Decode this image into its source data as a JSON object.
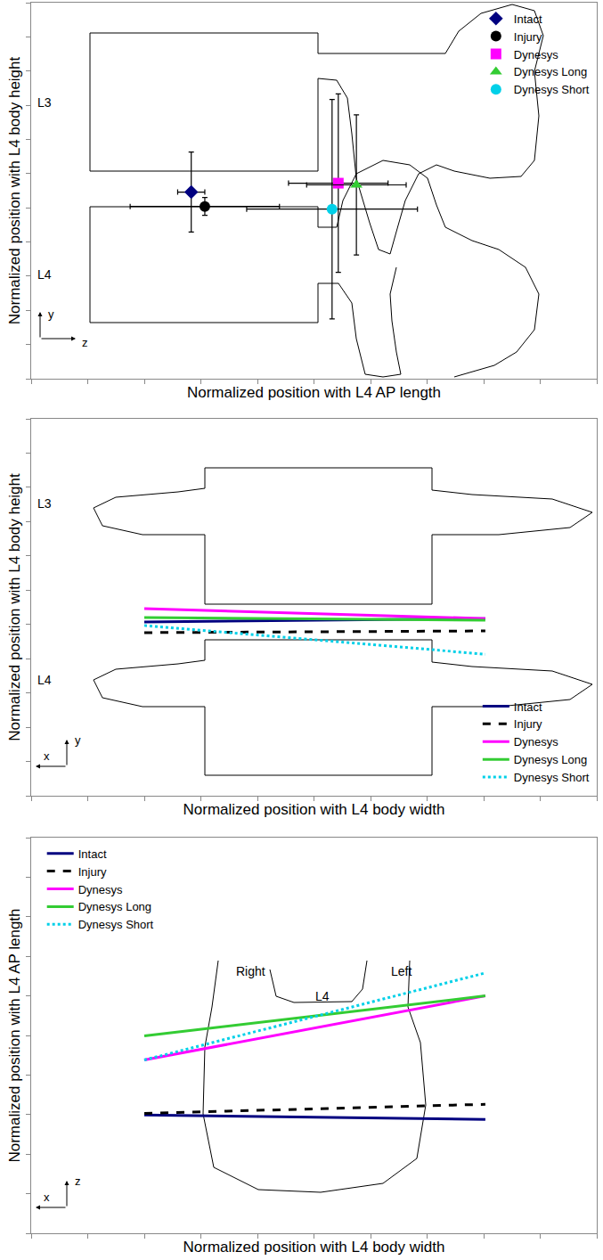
{
  "chart_data": [
    {
      "type": "scatter",
      "x_label": "Normalized position with L4 AP length",
      "y_label": "Normalized position with L4 body height",
      "xlim": [
        0,
        10
      ],
      "ylim": [
        0,
        11
      ],
      "xticks": [
        0,
        1,
        2,
        3,
        4,
        5,
        6,
        7,
        8,
        9,
        10
      ],
      "yticks": [
        0,
        1,
        2,
        3,
        4,
        5,
        6,
        7,
        8,
        9,
        10,
        11
      ],
      "tick_labels": false,
      "legend": "upper right",
      "annotations": [
        "L3",
        "L4"
      ],
      "axis_glyphs": [
        "y",
        "z"
      ],
      "series": [
        {
          "name": "Intact",
          "color": "#000080",
          "marker": "diamond",
          "x": [
            2.83
          ],
          "values": [
            5.46
          ],
          "x_error": [
            0.24
          ],
          "y_error": [
            1.17
          ]
        },
        {
          "name": "Injury",
          "color": "#000000",
          "marker": "circle",
          "x": [
            3.07
          ],
          "values": [
            5.04
          ],
          "x_error": [
            1.32
          ],
          "y_error": [
            0.26
          ]
        },
        {
          "name": "Dynesys",
          "color": "#ff00ff",
          "marker": "square",
          "x": [
            5.43
          ],
          "values": [
            5.72
          ],
          "x_error": [
            0.88
          ],
          "y_error": [
            2.61
          ]
        },
        {
          "name": "Dynesys Long",
          "color": "#33cc33",
          "marker": "triangle-up",
          "x": [
            5.75
          ],
          "values": [
            5.67
          ],
          "x_error": [
            0.88
          ],
          "y_error": [
            2.05
          ]
        },
        {
          "name": "Dynesys Short",
          "color": "#00d0e8",
          "marker": "circle",
          "x": [
            5.32
          ],
          "values": [
            4.96
          ],
          "x_error": [
            1.51
          ],
          "y_error": [
            3.21
          ]
        }
      ]
    },
    {
      "type": "line",
      "x_label": "Normalized position with L4 body width",
      "y_label": "Normalized position with L4 body height",
      "xlim": [
        0,
        10
      ],
      "ylim": [
        0,
        11
      ],
      "xticks": [
        0,
        1,
        2,
        3,
        4,
        5,
        6,
        7,
        8,
        9,
        10
      ],
      "yticks": [
        0,
        1,
        2,
        3,
        4,
        5,
        6,
        7,
        8,
        9,
        10,
        11
      ],
      "tick_labels": false,
      "legend": "lower right",
      "annotations": [
        "L3",
        "L4"
      ],
      "axis_glyphs": [
        "y",
        "x"
      ],
      "series": [
        {
          "name": "Intact",
          "color": "#000080",
          "line_style": "solid",
          "x": [
            2.0,
            8.03
          ],
          "values": [
            5.07,
            5.17
          ]
        },
        {
          "name": "Injury",
          "color": "#000000",
          "line_style": "dash",
          "x": [
            2.0,
            8.03
          ],
          "values": [
            4.76,
            4.81
          ]
        },
        {
          "name": "Dynesys",
          "color": "#ff00ff",
          "line_style": "solid",
          "x": [
            2.0,
            8.03
          ],
          "values": [
            5.46,
            5.17
          ]
        },
        {
          "name": "Dynesys Long",
          "color": "#33cc33",
          "line_style": "solid",
          "x": [
            2.0,
            8.03
          ],
          "values": [
            5.2,
            5.12
          ]
        },
        {
          "name": "Dynesys Short",
          "color": "#00d0e8",
          "line_style": "dot",
          "x": [
            2.0,
            8.03
          ],
          "values": [
            4.97,
            4.13
          ]
        }
      ]
    },
    {
      "type": "line",
      "x_label": "Normalized position with L4 body width",
      "y_label": "Normalized position with L4 AP length",
      "xlim": [
        0,
        10
      ],
      "ylim": [
        0,
        10
      ],
      "xticks": [
        0,
        1,
        2,
        3,
        4,
        5,
        6,
        7,
        8,
        9,
        10
      ],
      "yticks": [
        0,
        1,
        2,
        3,
        4,
        5,
        6,
        7,
        8,
        9,
        10
      ],
      "tick_labels": false,
      "legend": "upper left",
      "annotations": [
        "Right",
        "L4",
        "Left"
      ],
      "axis_glyphs": [
        "z",
        "x"
      ],
      "series": [
        {
          "name": "Intact",
          "color": "#000080",
          "line_style": "solid",
          "x": [
            2.0,
            8.03
          ],
          "values": [
            2.99,
            2.88
          ]
        },
        {
          "name": "Injury",
          "color": "#000000",
          "line_style": "dash",
          "x": [
            2.0,
            8.03
          ],
          "values": [
            3.03,
            3.26
          ]
        },
        {
          "name": "Dynesys",
          "color": "#ff00ff",
          "line_style": "solid",
          "x": [
            2.0,
            8.03
          ],
          "values": [
            4.38,
            6.0
          ]
        },
        {
          "name": "Dynesys Long",
          "color": "#33cc33",
          "line_style": "solid",
          "x": [
            2.0,
            8.03
          ],
          "values": [
            4.99,
            6.0
          ]
        },
        {
          "name": "Dynesys Short",
          "color": "#00d0e8",
          "line_style": "dot",
          "x": [
            2.0,
            8.03
          ],
          "values": [
            4.38,
            6.58
          ]
        }
      ]
    }
  ]
}
